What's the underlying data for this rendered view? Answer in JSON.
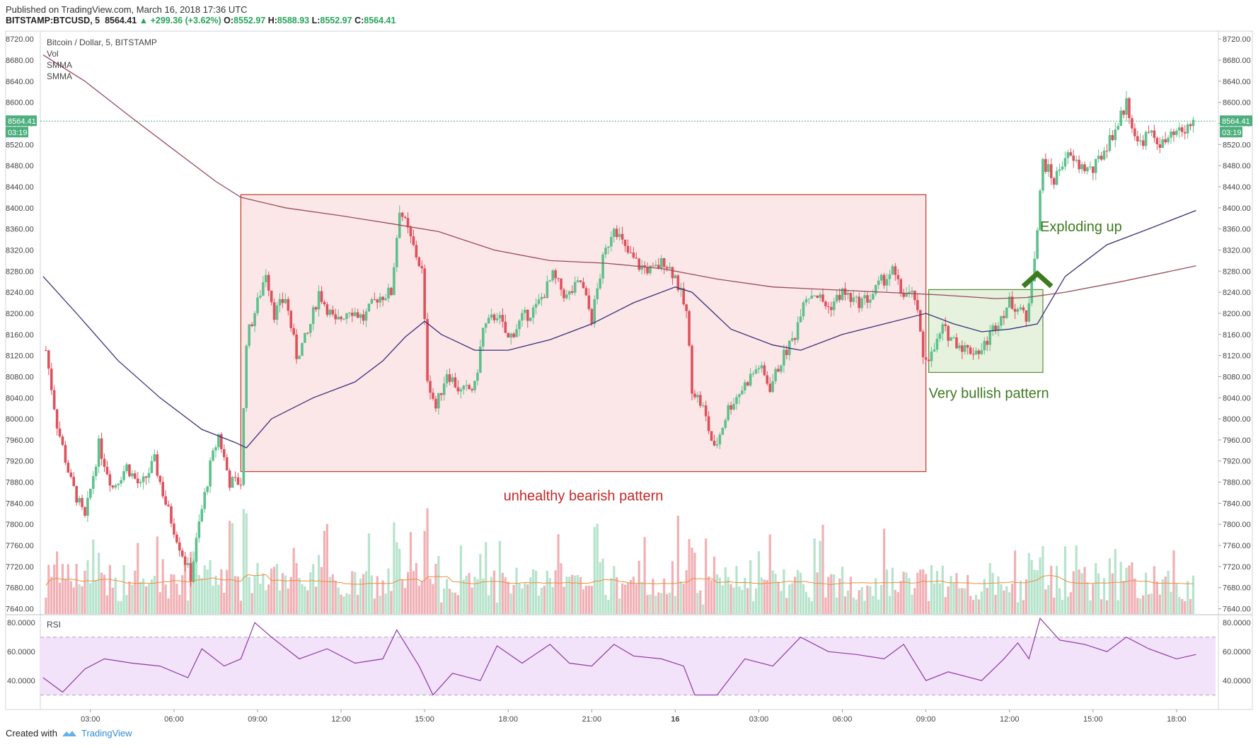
{
  "header": {
    "published": "Published on TradingView.com, March 16, 2018 17:36 UTC",
    "symbol_prefix": "BITSTAMP:BTCUSD, 5",
    "last": "8564.41",
    "change_arrow": "▲",
    "change": "+299.36 (+3.62%)",
    "o_label": "O:",
    "o_value": "8552.97",
    "h_label": "H:",
    "h_value": "8588.93",
    "l_label": "L:",
    "l_value": "8552.97",
    "c_label": "C:",
    "c_value": "8564.41"
  },
  "legend": {
    "title": "Bitcoin / Dollar, 5, BITSTAMP",
    "vol": "Vol",
    "smma1": "SMMA",
    "smma2": "SMMA",
    "rsi": "RSI"
  },
  "price_tag": {
    "value": "8564.41",
    "countdown": "03:19"
  },
  "annotations": {
    "bearish": "unhealthy bearish pattern",
    "bullish": "Very bullish pattern",
    "exploding": "Exploding up"
  },
  "footer": {
    "created_with": "Created with",
    "brand": "TradingView"
  },
  "colors": {
    "up": "#5ec08c",
    "down": "#e0505c",
    "smma_fast": "#3b2f7a",
    "smma_slow": "#9a4a57",
    "vol_ma": "#f08a3c",
    "rsi_line": "#8e3aa8",
    "rsi_band": "#f3e3fa",
    "bear_box": "#fbe7e8",
    "bear_border": "#c0392b",
    "bull_box": "#e6f1de",
    "bull_border": "#5a8a3a",
    "annot_red": "#c62828",
    "annot_green": "#3d7a1e",
    "price_tag": "#4caf7d"
  },
  "chart_data": {
    "type": "candlestick",
    "symbol": "BITSTAMP:BTCUSD",
    "interval": "5",
    "price_axis_ticks": [
      8720,
      8680,
      8640,
      8600,
      8560,
      8520,
      8480,
      8440,
      8400,
      8360,
      8320,
      8280,
      8240,
      8200,
      8160,
      8120,
      8080,
      8040,
      8000,
      7960,
      7920,
      7880,
      7840,
      7800,
      7760,
      7720,
      7680,
      7640
    ],
    "time_axis_labels": [
      "03:00",
      "06:00",
      "09:00",
      "12:00",
      "15:00",
      "18:00",
      "21:00",
      "16",
      "03:00",
      "06:00",
      "09:00",
      "12:00",
      "15:00",
      "18:00"
    ],
    "time_axis_hours": [
      3,
      6,
      9,
      12,
      15,
      18,
      21,
      24,
      27,
      30,
      33,
      36,
      39,
      42
    ],
    "x_range_hours": [
      1.2,
      43.4
    ],
    "y_range": [
      7630,
      8735
    ],
    "last_price": 8564.41,
    "price_path": [
      [
        1.4,
        8130
      ],
      [
        1.8,
        7990
      ],
      [
        2.3,
        7880
      ],
      [
        2.8,
        7810
      ],
      [
        3.3,
        7950
      ],
      [
        3.8,
        7870
      ],
      [
        4.3,
        7910
      ],
      [
        4.8,
        7870
      ],
      [
        5.3,
        7920
      ],
      [
        5.7,
        7840
      ],
      [
        6.2,
        7760
      ],
      [
        6.6,
        7700
      ],
      [
        6.9,
        7800
      ],
      [
        7.3,
        7910
      ],
      [
        7.6,
        7970
      ],
      [
        8.0,
        7880
      ],
      [
        8.4,
        7880
      ],
      [
        8.6,
        8150
      ],
      [
        9.0,
        8220
      ],
      [
        9.3,
        8280
      ],
      [
        9.6,
        8200
      ],
      [
        10.0,
        8230
      ],
      [
        10.4,
        8120
      ],
      [
        10.8,
        8160
      ],
      [
        11.2,
        8240
      ],
      [
        11.8,
        8180
      ],
      [
        12.3,
        8210
      ],
      [
        12.8,
        8190
      ],
      [
        13.3,
        8230
      ],
      [
        13.8,
        8240
      ],
      [
        14.1,
        8400
      ],
      [
        14.5,
        8340
      ],
      [
        14.9,
        8280
      ],
      [
        15.1,
        8080
      ],
      [
        15.4,
        8020
      ],
      [
        15.8,
        8090
      ],
      [
        16.3,
        8050
      ],
      [
        16.8,
        8060
      ],
      [
        17.1,
        8170
      ],
      [
        17.6,
        8200
      ],
      [
        18.0,
        8150
      ],
      [
        18.5,
        8190
      ],
      [
        19.0,
        8210
      ],
      [
        19.6,
        8270
      ],
      [
        20.1,
        8230
      ],
      [
        20.6,
        8260
      ],
      [
        21.0,
        8190
      ],
      [
        21.4,
        8300
      ],
      [
        21.8,
        8370
      ],
      [
        22.2,
        8320
      ],
      [
        22.7,
        8290
      ],
      [
        23.2,
        8280
      ],
      [
        23.6,
        8300
      ],
      [
        24.0,
        8270
      ],
      [
        24.4,
        8200
      ],
      [
        24.6,
        8060
      ],
      [
        25.0,
        8020
      ],
      [
        25.4,
        7940
      ],
      [
        25.9,
        8020
      ],
      [
        26.3,
        8050
      ],
      [
        26.7,
        8080
      ],
      [
        27.0,
        8100
      ],
      [
        27.4,
        8060
      ],
      [
        27.8,
        8110
      ],
      [
        28.3,
        8160
      ],
      [
        28.6,
        8230
      ],
      [
        29.0,
        8240
      ],
      [
        29.5,
        8210
      ],
      [
        30.0,
        8240
      ],
      [
        30.5,
        8220
      ],
      [
        31.0,
        8230
      ],
      [
        31.4,
        8260
      ],
      [
        31.8,
        8280
      ],
      [
        32.1,
        8240
      ],
      [
        32.6,
        8230
      ],
      [
        32.9,
        8120
      ],
      [
        33.2,
        8120
      ],
      [
        33.6,
        8170
      ],
      [
        34.0,
        8150
      ],
      [
        34.5,
        8130
      ],
      [
        35.0,
        8130
      ],
      [
        35.5,
        8180
      ],
      [
        36.0,
        8220
      ],
      [
        36.4,
        8210
      ],
      [
        36.6,
        8180
      ],
      [
        37.0,
        8360
      ],
      [
        37.2,
        8490
      ],
      [
        37.6,
        8450
      ],
      [
        38.0,
        8500
      ],
      [
        38.5,
        8480
      ],
      [
        39.0,
        8470
      ],
      [
        39.5,
        8520
      ],
      [
        39.9,
        8560
      ],
      [
        40.2,
        8600
      ],
      [
        40.6,
        8520
      ],
      [
        41.0,
        8540
      ],
      [
        41.5,
        8520
      ],
      [
        42.0,
        8540
      ],
      [
        42.3,
        8545
      ],
      [
        42.6,
        8564.41
      ]
    ],
    "smma_fast": [
      [
        1.3,
        8270
      ],
      [
        2.5,
        8200
      ],
      [
        4.0,
        8110
      ],
      [
        5.5,
        8040
      ],
      [
        7.0,
        7980
      ],
      [
        8.2,
        7955
      ],
      [
        8.6,
        7945
      ],
      [
        9.5,
        8000
      ],
      [
        11.0,
        8040
      ],
      [
        12.5,
        8070
      ],
      [
        13.5,
        8110
      ],
      [
        14.3,
        8155
      ],
      [
        15.0,
        8185
      ],
      [
        15.6,
        8160
      ],
      [
        16.8,
        8130
      ],
      [
        18.0,
        8130
      ],
      [
        19.5,
        8150
      ],
      [
        21.0,
        8180
      ],
      [
        22.5,
        8220
      ],
      [
        24.0,
        8250
      ],
      [
        24.6,
        8240
      ],
      [
        26.0,
        8170
      ],
      [
        27.5,
        8140
      ],
      [
        28.5,
        8130
      ],
      [
        30.0,
        8160
      ],
      [
        31.5,
        8180
      ],
      [
        33.0,
        8200
      ],
      [
        34.0,
        8180
      ],
      [
        35.0,
        8165
      ],
      [
        36.0,
        8170
      ],
      [
        37.0,
        8180
      ],
      [
        38.0,
        8270
      ],
      [
        39.5,
        8330
      ],
      [
        41.0,
        8360
      ],
      [
        42.7,
        8395
      ]
    ],
    "smma_slow": [
      [
        1.3,
        8690
      ],
      [
        2.8,
        8640
      ],
      [
        4.5,
        8570
      ],
      [
        6.0,
        8510
      ],
      [
        7.5,
        8450
      ],
      [
        8.4,
        8420
      ],
      [
        10.0,
        8400
      ],
      [
        12.0,
        8385
      ],
      [
        13.8,
        8370
      ],
      [
        15.5,
        8355
      ],
      [
        17.5,
        8320
      ],
      [
        19.5,
        8300
      ],
      [
        21.5,
        8295
      ],
      [
        23.5,
        8285
      ],
      [
        25.5,
        8265
      ],
      [
        27.5,
        8250
      ],
      [
        29.5,
        8245
      ],
      [
        31.5,
        8240
      ],
      [
        33.5,
        8235
      ],
      [
        35.5,
        8228
      ],
      [
        36.6,
        8230
      ],
      [
        38.0,
        8240
      ],
      [
        40.0,
        8260
      ],
      [
        42.7,
        8290
      ]
    ],
    "rsi": {
      "range": [
        20,
        85
      ],
      "ticks": [
        80,
        60,
        40
      ],
      "tick_labels": [
        "80.0000",
        "60.0000",
        "40.0000"
      ],
      "band": [
        30,
        70
      ],
      "path": [
        [
          1.3,
          42
        ],
        [
          2.0,
          32
        ],
        [
          2.8,
          48
        ],
        [
          3.5,
          55
        ],
        [
          4.5,
          52
        ],
        [
          5.5,
          50
        ],
        [
          6.5,
          42
        ],
        [
          7.0,
          62
        ],
        [
          7.8,
          50
        ],
        [
          8.4,
          55
        ],
        [
          8.9,
          80
        ],
        [
          9.5,
          70
        ],
        [
          10.5,
          55
        ],
        [
          11.5,
          62
        ],
        [
          12.5,
          52
        ],
        [
          13.5,
          55
        ],
        [
          14.0,
          75
        ],
        [
          14.8,
          50
        ],
        [
          15.3,
          30
        ],
        [
          16.0,
          45
        ],
        [
          17.0,
          40
        ],
        [
          17.6,
          64
        ],
        [
          18.5,
          52
        ],
        [
          19.5,
          65
        ],
        [
          20.2,
          52
        ],
        [
          21.0,
          50
        ],
        [
          21.8,
          65
        ],
        [
          22.5,
          57
        ],
        [
          23.5,
          55
        ],
        [
          24.3,
          50
        ],
        [
          24.7,
          30
        ],
        [
          25.5,
          30
        ],
        [
          26.5,
          55
        ],
        [
          27.5,
          50
        ],
        [
          28.5,
          70
        ],
        [
          29.5,
          60
        ],
        [
          30.5,
          58
        ],
        [
          31.5,
          55
        ],
        [
          32.2,
          65
        ],
        [
          33.0,
          40
        ],
        [
          33.8,
          46
        ],
        [
          35.0,
          40
        ],
        [
          35.8,
          55
        ],
        [
          36.3,
          66
        ],
        [
          36.7,
          55
        ],
        [
          37.1,
          83
        ],
        [
          37.8,
          68
        ],
        [
          38.7,
          65
        ],
        [
          39.5,
          60
        ],
        [
          40.2,
          70
        ],
        [
          41.0,
          62
        ],
        [
          42.0,
          55
        ],
        [
          42.7,
          58
        ]
      ]
    },
    "volume_avg_level": 7690,
    "annotations": [
      {
        "text": "unhealthy bearish pattern",
        "type": "rectangle",
        "x_hours": [
          8.4,
          33.0
        ],
        "y_prices": [
          7900,
          8425
        ]
      },
      {
        "text": "Very bullish pattern",
        "type": "rectangle",
        "x_hours": [
          33.1,
          37.2
        ],
        "y_prices": [
          8088,
          8245
        ]
      },
      {
        "text": "Exploding up",
        "type": "arrow",
        "x_hours": 37.0,
        "y_price": 8270
      }
    ],
    "grid": false,
    "legend_position": "top-left"
  }
}
